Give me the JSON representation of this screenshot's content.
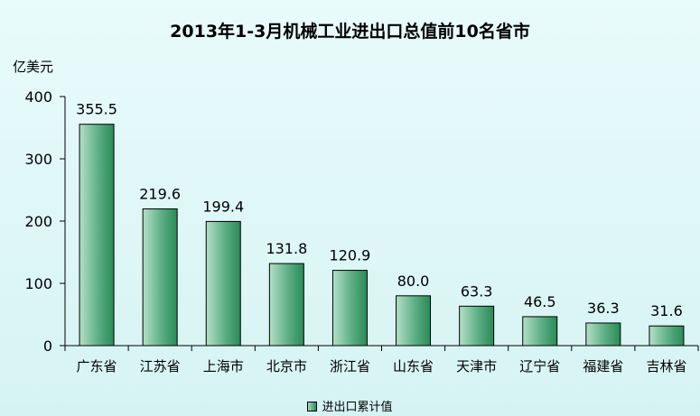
{
  "chart_data": {
    "type": "bar",
    "title": "2013年1-3月机械工业进出口总值前10名省市",
    "ylabel": "亿美元",
    "xlabel": "",
    "categories": [
      "广东省",
      "江苏省",
      "上海市",
      "北京市",
      "浙江省",
      "山东省",
      "天津市",
      "辽宁省",
      "福建省",
      "吉林省"
    ],
    "series": [
      {
        "name": "进出口累计值",
        "values": [
          355.5,
          219.6,
          199.4,
          131.8,
          120.9,
          80.0,
          63.3,
          46.5,
          36.3,
          31.6
        ]
      }
    ],
    "data_labels": [
      "355.5",
      "219.6",
      "199.4",
      "131.8",
      "120.9",
      "80.0",
      "63.3",
      "46.5",
      "36.3",
      "31.6"
    ],
    "ylim": [
      0,
      400
    ],
    "yticks": [
      "0",
      "100",
      "200",
      "300",
      "400"
    ],
    "grid": false,
    "legend_position": "bottom",
    "colors": {
      "bar_light": "#b4e0c8",
      "bar_dark": "#2a8a57",
      "bar_edge": "#000000",
      "background": "#e3f8f8"
    }
  }
}
